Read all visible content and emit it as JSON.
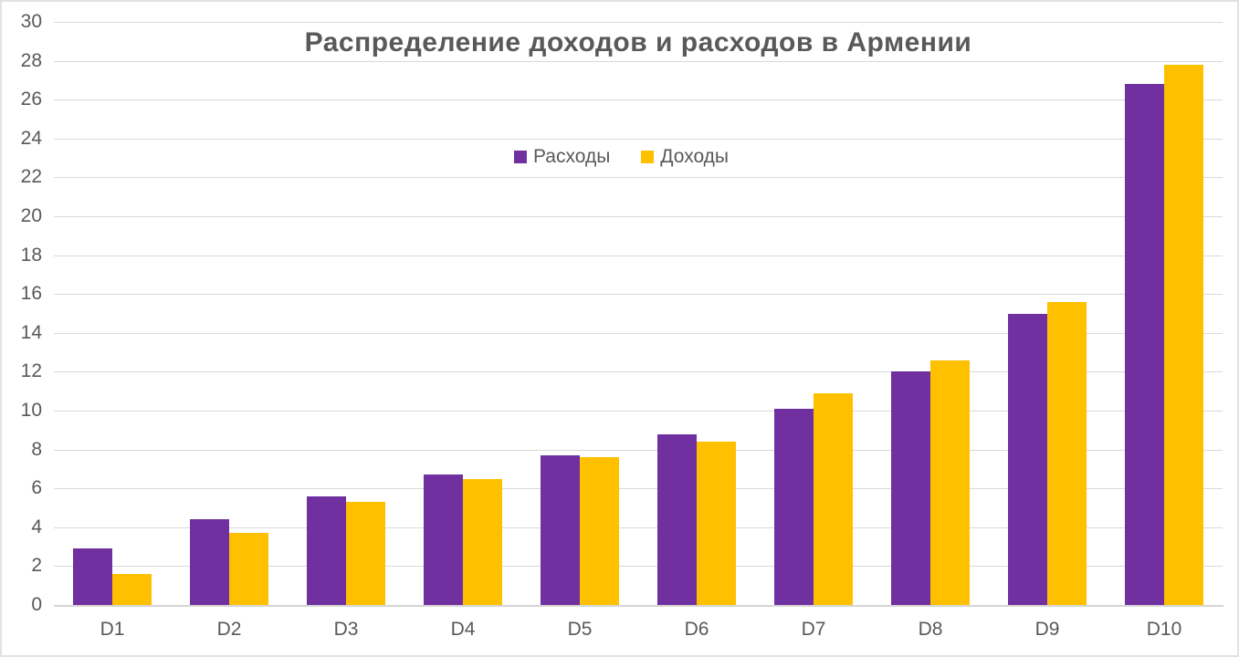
{
  "title": "Распределение доходов и расходов в Армении",
  "chart_data": {
    "type": "bar",
    "title": "Распределение доходов и расходов в Армении",
    "categories": [
      "D1",
      "D2",
      "D3",
      "D4",
      "D5",
      "D6",
      "D7",
      "D8",
      "D9",
      "D10"
    ],
    "series": [
      {
        "name": "Расходы",
        "color": "#7030A0",
        "values": [
          2.9,
          4.4,
          5.6,
          6.7,
          7.7,
          8.8,
          10.1,
          12.0,
          15.0,
          26.8
        ]
      },
      {
        "name": "Доходы",
        "color": "#FFC000",
        "values": [
          1.6,
          3.7,
          5.3,
          6.5,
          7.6,
          8.4,
          10.9,
          12.6,
          15.6,
          27.8
        ]
      }
    ],
    "xlabel": "",
    "ylabel": "",
    "ylim": [
      0,
      30
    ],
    "yticks": [
      0,
      2,
      4,
      6,
      8,
      10,
      12,
      14,
      16,
      18,
      20,
      22,
      24,
      26,
      28,
      30
    ],
    "grid": true,
    "legend_position": "top-center-inside"
  },
  "colors": {
    "text": "#595959",
    "gridline": "#D9D9D9",
    "axis_line": "#D5D5D5",
    "background": "#FFFFFF",
    "frame_border": "#E2E2E2"
  }
}
